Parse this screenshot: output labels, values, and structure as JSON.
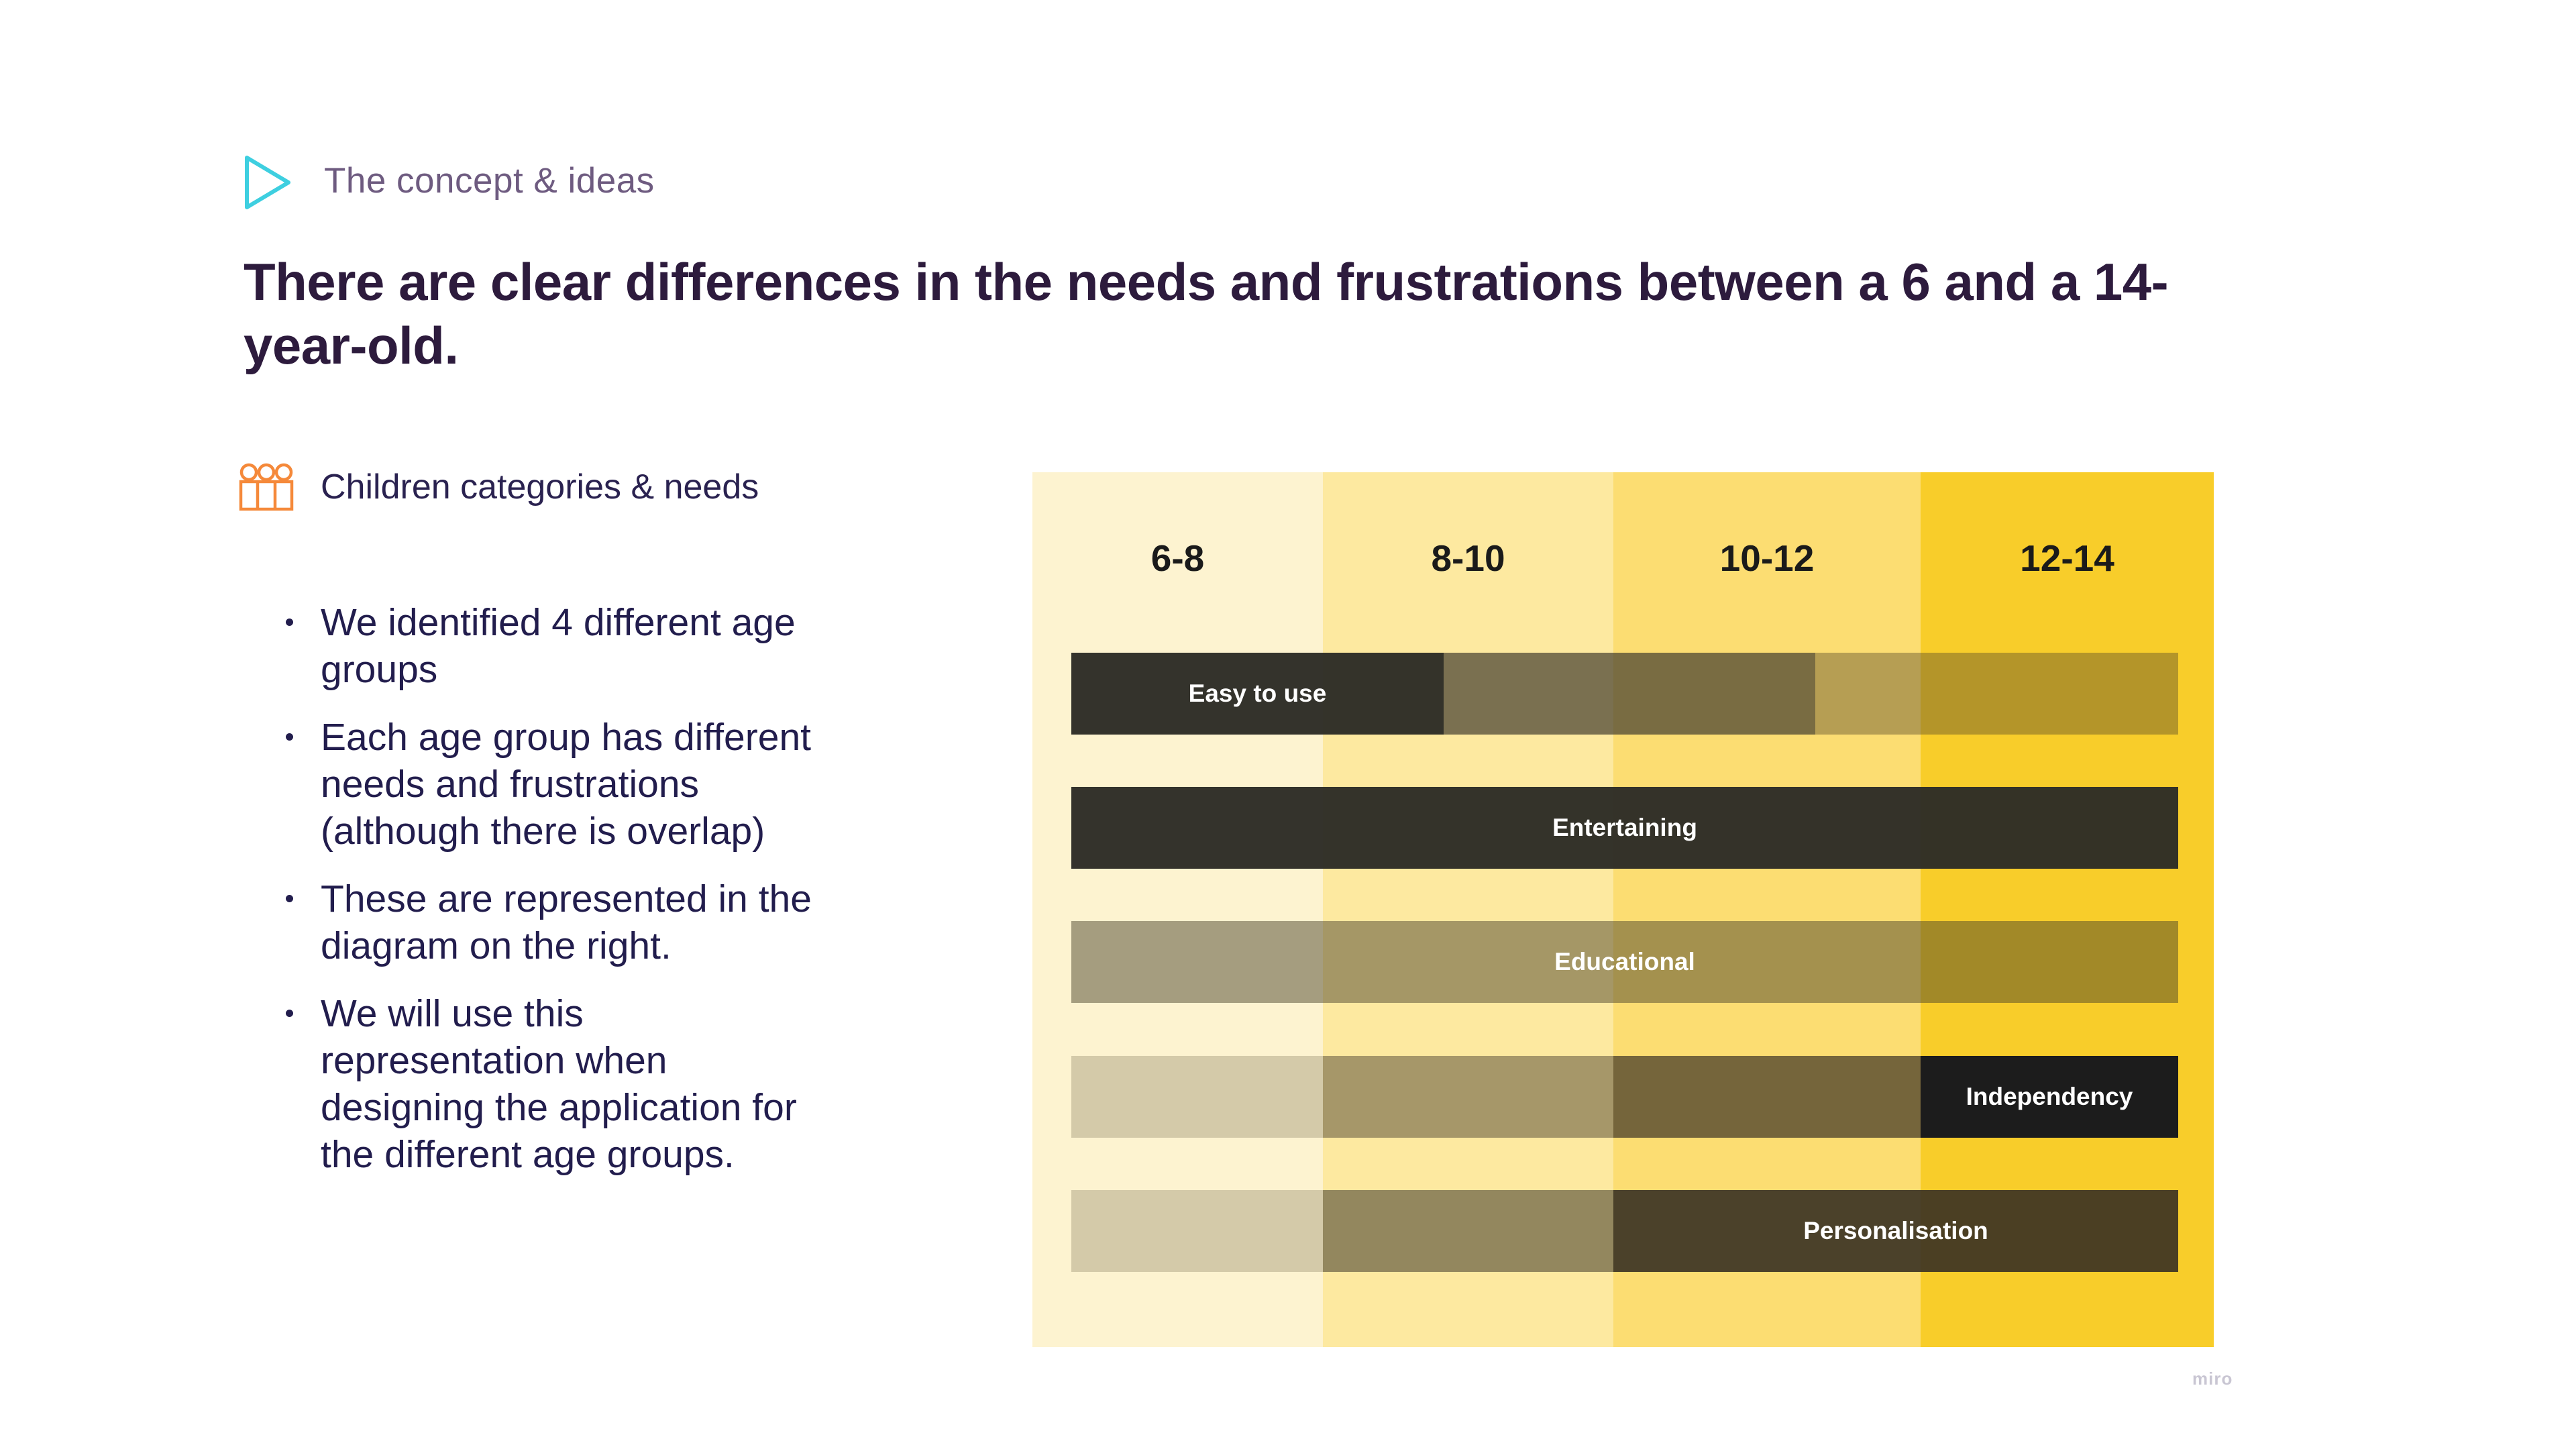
{
  "header": {
    "section_label": "The concept & ideas",
    "section_icon": "play-triangle-icon",
    "title_lines": [
      "There are clear differences in the needs and frustrations between a 6 and a 14-",
      "year-old."
    ]
  },
  "left_panel": {
    "subheading": "Children categories & needs",
    "subheading_icon": "children-group-icon",
    "bullets": [
      {
        "lines": [
          "We identified 4 different age",
          "groups"
        ]
      },
      {
        "lines": [
          "Each age group has different",
          "needs and frustrations",
          "(although there is overlap)"
        ]
      },
      {
        "lines": [
          "These are represented in the",
          "diagram on the right."
        ]
      },
      {
        "lines": [
          "We will use this",
          "representation when",
          "designing the application for",
          "the different age groups."
        ]
      }
    ]
  },
  "colors": {
    "accent_cyan": "#3ecfe0",
    "accent_orange": "#f5893a",
    "title": "#2d1b3d",
    "column_6_8": "#fdf3d0",
    "column_8_10": "#fde9a0",
    "column_10_12": "#fcdd72",
    "column_12_14": "#f8cd2a"
  },
  "diagram": {
    "columns": [
      {
        "label": "6-8",
        "color": "#fdf3d0"
      },
      {
        "label": "8-10",
        "color": "#fde9a0"
      },
      {
        "label": "10-12",
        "color": "#fcdd72"
      },
      {
        "label": "12-14",
        "color": "#f8cd2a"
      }
    ],
    "needs": [
      {
        "label": "Easy to use",
        "intensity_by_age": [
          1.0,
          0.75,
          0.55,
          0.3
        ],
        "segments": [
          {
            "from": "6-8",
            "to": "8-10",
            "part": 0.53,
            "color": "rgba(45,44,38,0.97)",
            "label_here": true
          },
          {
            "from": "8-10",
            "to": "10-12",
            "part": 0.47,
            "color": "rgba(65,60,45,0.7)"
          },
          {
            "from": "10-12",
            "to": "12-14",
            "color": "rgba(85,72,40,0.42)"
          }
        ]
      },
      {
        "label": "Entertaining",
        "intensity_by_age": [
          1.0,
          1.0,
          1.0,
          1.0
        ],
        "segments": [
          {
            "from": "6-8",
            "to": "12-14",
            "color": "rgba(45,44,38,0.97)",
            "label_here": true
          }
        ]
      },
      {
        "label": "Educational",
        "intensity_by_age": [
          0.45,
          0.45,
          0.45,
          0.45
        ],
        "segments": [
          {
            "from": "6-8",
            "to": "12-14",
            "color": "rgba(70,62,40,0.48)",
            "label_here": true
          }
        ]
      },
      {
        "label": "Independency",
        "intensity_by_age": [
          0.2,
          0.45,
          0.6,
          1.0
        ],
        "segments": [
          {
            "from": "6-8",
            "to": "6-8",
            "color": "rgba(120,110,80,0.3)"
          },
          {
            "from": "8-10",
            "to": "8-10",
            "color": "rgba(80,70,50,0.5)"
          },
          {
            "from": "10-12",
            "to": "10-12",
            "color": "rgba(60,50,35,0.7)"
          },
          {
            "from": "12-14",
            "to": "12-14",
            "color": "rgba(28,28,28,1)",
            "label_here": true
          }
        ]
      },
      {
        "label": "Personalisation",
        "intensity_by_age": [
          0.2,
          0.55,
          0.85,
          0.85
        ],
        "segments": [
          {
            "from": "6-8",
            "to": "6-8",
            "color": "rgba(120,110,80,0.3)"
          },
          {
            "from": "8-10",
            "to": "8-10",
            "color": "rgba(60,55,40,0.55)"
          },
          {
            "from": "10-12",
            "to": "12-14",
            "color": "rgba(55,48,34,0.9)",
            "label_here": true
          }
        ]
      }
    ]
  },
  "watermark": "miro"
}
